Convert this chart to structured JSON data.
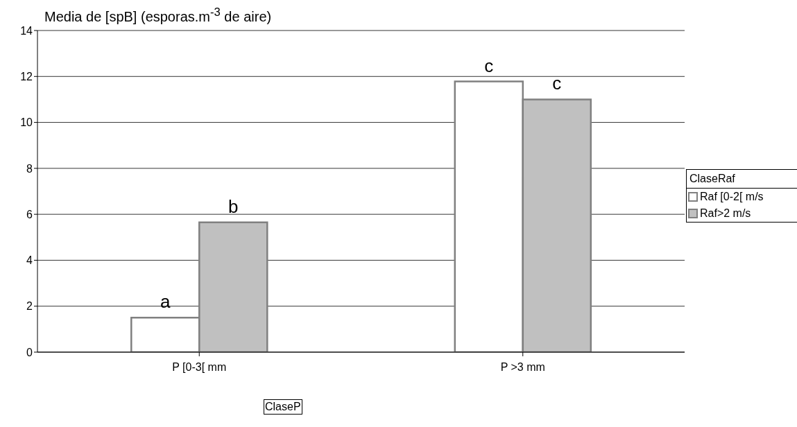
{
  "chart_data": {
    "type": "bar",
    "title": "Media de [spB] (esporas.m$^{-3}$ de aire)",
    "xlabel": "ClaseP",
    "legend_title": "ClaseRaf",
    "categories": [
      "P [0-3[ mm",
      "P >3 mm"
    ],
    "series": [
      {
        "name": "Raf [0-2[ m/s",
        "color": "#ffffff",
        "values": [
          1.5,
          11.78
        ]
      },
      {
        "name": "Raf>2 m/s",
        "color": "#c0c0c0",
        "values": [
          5.65,
          11.0
        ]
      }
    ],
    "annotations": [
      {
        "text": "a",
        "x": "P [0-3[ mm",
        "y": 1.5
      },
      {
        "text": "b",
        "x": "P [0-3[ mm",
        "y": 5.65
      },
      {
        "text": "c",
        "x": "P >3 mm",
        "y": 11.78
      },
      {
        "text": "c",
        "x": "P >3 mm",
        "y": 11.0
      }
    ],
    "ylim": [
      0,
      14
    ],
    "yticks": [
      0,
      2,
      4,
      6,
      8,
      10,
      12,
      14
    ],
    "grid": "y",
    "legend": "right"
  }
}
